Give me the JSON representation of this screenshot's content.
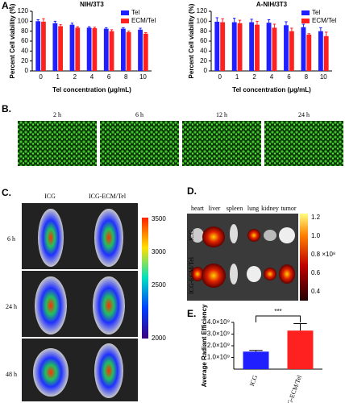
{
  "chart_data": [
    {
      "type": "bar",
      "title": "NIH/3T3",
      "x_label": "Tel concentration (μg/mL)",
      "y_label": "Percent Cell viability (%)",
      "categories": [
        "0",
        "1",
        "2",
        "4",
        "6",
        "8",
        "10"
      ],
      "series": [
        {
          "name": "Tel",
          "color": "#1f1fff",
          "values": [
            100,
            96,
            93,
            87,
            85,
            85,
            83
          ],
          "errors": [
            3,
            4,
            3,
            2,
            2,
            2,
            3
          ]
        },
        {
          "name": "ECM/Tel",
          "color": "#ff2020",
          "values": [
            99,
            90,
            87,
            86,
            80,
            78,
            75
          ],
          "errors": [
            6,
            3,
            2,
            2,
            3,
            2,
            2
          ]
        }
      ],
      "ylim": [
        0,
        120
      ],
      "yticks": [
        0,
        20,
        40,
        60,
        80,
        100,
        120
      ],
      "legend": "upper right"
    },
    {
      "type": "bar",
      "title": "A-NIH/3T3",
      "x_label": "Tel concentration (μg/mL)",
      "y_label": "Percent Cell viability (%)",
      "categories": [
        "0",
        "1",
        "2",
        "4",
        "6",
        "8",
        "10"
      ],
      "series": [
        {
          "name": "Tel",
          "color": "#1f1fff",
          "values": [
            99,
            98,
            98,
            97,
            92,
            88,
            80
          ],
          "errors": [
            8,
            8,
            6,
            6,
            7,
            6,
            7
          ]
        },
        {
          "name": "ECM/Tel",
          "color": "#ff2020",
          "values": [
            98,
            96,
            93,
            87,
            80,
            73,
            70
          ],
          "errors": [
            7,
            6,
            7,
            7,
            6,
            2,
            8
          ]
        }
      ],
      "ylim": [
        0,
        120
      ],
      "yticks": [
        0,
        20,
        40,
        60,
        80,
        100,
        120
      ],
      "legend": "upper right"
    },
    {
      "type": "bar",
      "y_label": "Average Radiant Efficiency",
      "annotation": "***",
      "categories": [
        "ICG",
        "ICG-ECM/Tel"
      ],
      "series": [
        {
          "colors": [
            "#1f1fff",
            "#ff2020"
          ],
          "values": [
            1500000000,
            3300000000
          ],
          "errors": [
            100000000,
            600000000
          ]
        }
      ],
      "ylim": [
        0,
        4000000000
      ],
      "yticks": [
        {
          "value": 1000000000,
          "label": "1.0×10⁹"
        },
        {
          "value": 2000000000,
          "label": "2.0×10⁹"
        },
        {
          "value": 3000000000,
          "label": "3.0×10⁹"
        },
        {
          "value": 4000000000,
          "label": "4.0×10⁹"
        }
      ]
    }
  ],
  "panel_labels": [
    "A.",
    "B.",
    "C.",
    "D.",
    "E."
  ],
  "panel_b": {
    "times": [
      "2 h",
      "6 h",
      "12 h",
      "24 h"
    ]
  },
  "panel_c": {
    "columns": [
      "ICG",
      "ICG-ECM/Tel"
    ],
    "rows": [
      "6 h",
      "24 h",
      "48 h"
    ],
    "scale": [
      "3500",
      "3000",
      "2500",
      "2000"
    ]
  },
  "panel_d": {
    "organs": [
      "heart",
      "liver",
      "spleen",
      "lung",
      "kidney",
      "tumor"
    ],
    "rows": [
      "ICG",
      "ICG-ECM/Tel"
    ],
    "scale": [
      "1.2",
      "1.0",
      "0.8 ×10⁸",
      "0.6",
      "0.4"
    ]
  }
}
